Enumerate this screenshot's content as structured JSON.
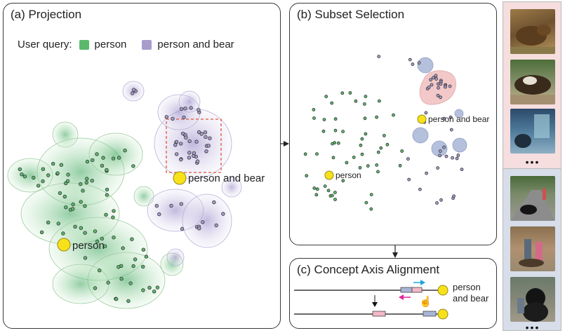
{
  "panels": {
    "projection": {
      "title": "(a) Projection",
      "legend_prefix": "User query:",
      "queries": [
        {
          "label": "person",
          "color": "#5bb96c"
        },
        {
          "label": "person and bear",
          "color": "#a89ccd"
        }
      ],
      "anchor_person": "person",
      "anchor_bear": "person and bear"
    },
    "subset": {
      "title": "(b) Subset Selection",
      "anchor_person": "person",
      "anchor_bear": "person and bear"
    },
    "axis": {
      "title": "(c) Concept Axis Alignment",
      "anchor_line1": "person",
      "anchor_line2": "and bear"
    }
  },
  "strips": {
    "bear_results": {
      "more": "•••",
      "color": "#f6dede"
    },
    "person_results": {
      "more": "•••",
      "color": "#d7dde9"
    }
  },
  "colors": {
    "green": "#5bb96c",
    "purple": "#a89ccd",
    "anchor": "#f7e11b",
    "selection_red": "#e0533a",
    "blue_circle": "#a8b6d6",
    "pink_region": "#f2c3c3",
    "arrow_blue": "#1aa3e0",
    "arrow_pink": "#e0249a"
  }
}
